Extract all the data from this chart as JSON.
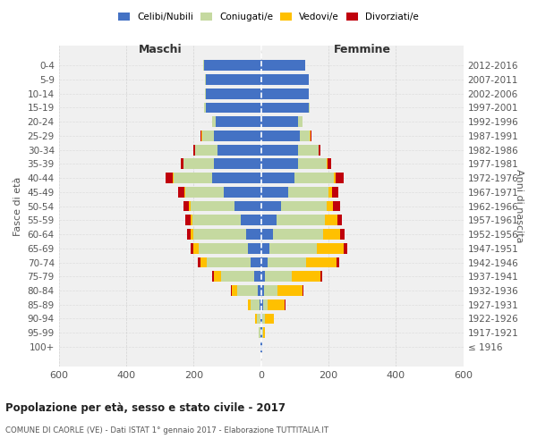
{
  "age_groups": [
    "100+",
    "95-99",
    "90-94",
    "85-89",
    "80-84",
    "75-79",
    "70-74",
    "65-69",
    "60-64",
    "55-59",
    "50-54",
    "45-49",
    "40-44",
    "35-39",
    "30-34",
    "25-29",
    "20-24",
    "15-19",
    "10-14",
    "5-9",
    "0-4"
  ],
  "birth_years": [
    "≤ 1916",
    "1917-1921",
    "1922-1926",
    "1927-1931",
    "1932-1936",
    "1937-1941",
    "1942-1946",
    "1947-1951",
    "1952-1956",
    "1957-1961",
    "1962-1966",
    "1967-1971",
    "1972-1976",
    "1977-1981",
    "1982-1986",
    "1987-1991",
    "1992-1996",
    "1997-2001",
    "2002-2006",
    "2007-2011",
    "2012-2016"
  ],
  "male": {
    "celibi": [
      2,
      3,
      3,
      5,
      10,
      20,
      30,
      40,
      45,
      60,
      80,
      110,
      145,
      140,
      130,
      140,
      135,
      165,
      165,
      165,
      170
    ],
    "coniugati": [
      1,
      3,
      10,
      25,
      60,
      100,
      130,
      145,
      155,
      145,
      130,
      115,
      115,
      90,
      65,
      35,
      10,
      3,
      2,
      2,
      2
    ],
    "vedovi": [
      0,
      1,
      5,
      8,
      18,
      20,
      20,
      15,
      10,
      5,
      3,
      2,
      2,
      1,
      1,
      1,
      0,
      0,
      0,
      0,
      0
    ],
    "divorziati": [
      0,
      0,
      0,
      0,
      1,
      5,
      8,
      10,
      10,
      15,
      18,
      20,
      22,
      8,
      5,
      3,
      1,
      0,
      0,
      0,
      0
    ]
  },
  "female": {
    "nubili": [
      2,
      3,
      4,
      5,
      8,
      12,
      18,
      25,
      35,
      45,
      60,
      80,
      100,
      110,
      110,
      115,
      110,
      140,
      140,
      140,
      130
    ],
    "coniugate": [
      1,
      2,
      8,
      15,
      40,
      80,
      115,
      140,
      150,
      145,
      135,
      120,
      115,
      85,
      60,
      30,
      12,
      3,
      2,
      2,
      2
    ],
    "vedove": [
      1,
      5,
      25,
      50,
      75,
      85,
      90,
      80,
      50,
      35,
      18,
      10,
      5,
      2,
      1,
      1,
      0,
      0,
      0,
      0,
      0
    ],
    "divorziate": [
      0,
      0,
      0,
      1,
      2,
      5,
      8,
      10,
      12,
      15,
      20,
      18,
      25,
      10,
      5,
      3,
      1,
      0,
      0,
      0,
      0
    ]
  },
  "colors": {
    "celibi": "#4472c4",
    "coniugati": "#c5d9a0",
    "vedovi": "#ffc000",
    "divorziati": "#c0000c"
  },
  "xlim": 600,
  "title": "Popolazione per età, sesso e stato civile - 2017",
  "subtitle": "COMUNE DI CAORLE (VE) - Dati ISTAT 1° gennaio 2017 - Elaborazione TUTTITALIA.IT",
  "ylabel_left": "Fasce di età",
  "ylabel_right": "Anni di nascita",
  "xlabel_maschi": "Maschi",
  "xlabel_femmine": "Femmine",
  "bg_color": "#f0f0f0",
  "grid_color": "#cccccc",
  "legend_labels": [
    "Celibi/Nubili",
    "Coniugati/e",
    "Vedovi/e",
    "Divorziati/e"
  ]
}
